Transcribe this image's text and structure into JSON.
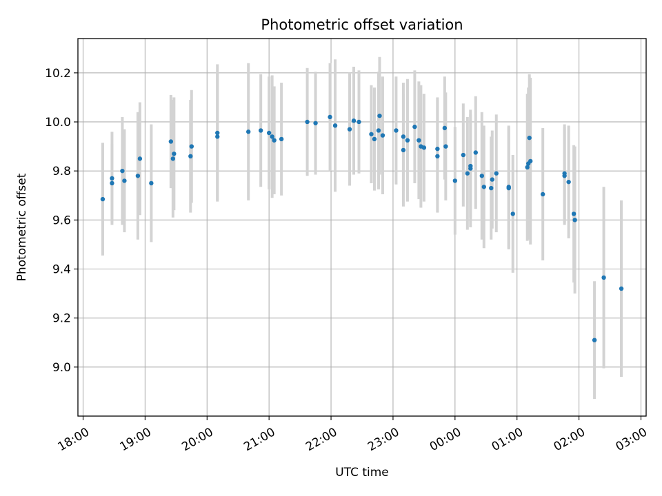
{
  "chart_data": {
    "type": "scatter",
    "title": "Photometric offset variation",
    "xlabel": "UTC time",
    "ylabel": "Photometric offset",
    "x_unit": "time (UTC), hours past 18:00",
    "xlim": [
      "17:55",
      "03:05"
    ],
    "ylim": [
      8.8,
      10.34
    ],
    "xticks": [
      "18:00",
      "19:00",
      "20:00",
      "21:00",
      "22:00",
      "23:00",
      "00:00",
      "01:00",
      "02:00",
      "03:00"
    ],
    "yticks": [
      "9.0",
      "9.2",
      "9.4",
      "9.6",
      "9.8",
      "10.0",
      "10.2"
    ],
    "grid": true,
    "colors": {
      "points": "#1f77b4",
      "errorbars": "#d3d3d3",
      "grid": "#b0b0b0"
    },
    "points": [
      {
        "x": "18:19",
        "y": 9.685,
        "err": 0.23
      },
      {
        "x": "18:28",
        "y": 9.75,
        "err": 0.16
      },
      {
        "x": "18:28",
        "y": 9.77,
        "err": 0.19
      },
      {
        "x": "18:38",
        "y": 9.8,
        "err": 0.22
      },
      {
        "x": "18:40",
        "y": 9.76,
        "err": 0.21
      },
      {
        "x": "18:53",
        "y": 9.78,
        "err": 0.26
      },
      {
        "x": "18:55",
        "y": 9.85,
        "err": 0.23
      },
      {
        "x": "19:06",
        "y": 9.75,
        "err": 0.24
      },
      {
        "x": "19:25",
        "y": 9.92,
        "err": 0.19
      },
      {
        "x": "19:27",
        "y": 9.85,
        "err": 0.24
      },
      {
        "x": "19:28",
        "y": 9.87,
        "err": 0.23
      },
      {
        "x": "19:44",
        "y": 9.86,
        "err": 0.23
      },
      {
        "x": "19:45",
        "y": 9.9,
        "err": 0.23
      },
      {
        "x": "20:10",
        "y": 9.94,
        "err": 0.26
      },
      {
        "x": "20:10",
        "y": 9.955,
        "err": 0.28
      },
      {
        "x": "20:40",
        "y": 9.96,
        "err": 0.28
      },
      {
        "x": "20:52",
        "y": 9.965,
        "err": 0.23
      },
      {
        "x": "21:00",
        "y": 9.955,
        "err": 0.23
      },
      {
        "x": "21:03",
        "y": 9.94,
        "err": 0.25
      },
      {
        "x": "21:05",
        "y": 9.925,
        "err": 0.22
      },
      {
        "x": "21:12",
        "y": 9.93,
        "err": 0.23
      },
      {
        "x": "21:37",
        "y": 10.0,
        "err": 0.22
      },
      {
        "x": "21:45",
        "y": 9.995,
        "err": 0.21
      },
      {
        "x": "21:59",
        "y": 10.02,
        "err": 0.22
      },
      {
        "x": "22:04",
        "y": 9.985,
        "err": 0.27
      },
      {
        "x": "22:18",
        "y": 9.97,
        "err": 0.23
      },
      {
        "x": "22:22",
        "y": 10.005,
        "err": 0.22
      },
      {
        "x": "22:27",
        "y": 10.0,
        "err": 0.21
      },
      {
        "x": "22:39",
        "y": 9.95,
        "err": 0.2
      },
      {
        "x": "22:42",
        "y": 9.93,
        "err": 0.21
      },
      {
        "x": "22:46",
        "y": 9.965,
        "err": 0.24
      },
      {
        "x": "22:47",
        "y": 10.025,
        "err": 0.24
      },
      {
        "x": "22:50",
        "y": 9.945,
        "err": 0.24
      },
      {
        "x": "23:03",
        "y": 9.965,
        "err": 0.22
      },
      {
        "x": "23:10",
        "y": 9.94,
        "err": 0.22
      },
      {
        "x": "23:10",
        "y": 9.885,
        "err": 0.23
      },
      {
        "x": "23:14",
        "y": 9.925,
        "err": 0.25
      },
      {
        "x": "23:21",
        "y": 9.98,
        "err": 0.23
      },
      {
        "x": "23:25",
        "y": 9.925,
        "err": 0.24
      },
      {
        "x": "23:27",
        "y": 9.9,
        "err": 0.25
      },
      {
        "x": "23:30",
        "y": 9.895,
        "err": 0.22
      },
      {
        "x": "23:43",
        "y": 9.89,
        "err": 0.21
      },
      {
        "x": "23:43",
        "y": 9.86,
        "err": 0.23
      },
      {
        "x": "23:50",
        "y": 9.975,
        "err": 0.21
      },
      {
        "x": "23:51",
        "y": 9.9,
        "err": 0.22
      },
      {
        "x": "00:00",
        "y": 9.76,
        "err": 0.22
      },
      {
        "x": "00:08",
        "y": 9.865,
        "err": 0.21
      },
      {
        "x": "00:12",
        "y": 9.79,
        "err": 0.23
      },
      {
        "x": "00:15",
        "y": 9.82,
        "err": 0.21
      },
      {
        "x": "00:15",
        "y": 9.81,
        "err": 0.24
      },
      {
        "x": "00:20",
        "y": 9.875,
        "err": 0.23
      },
      {
        "x": "00:26",
        "y": 9.78,
        "err": 0.26
      },
      {
        "x": "00:28",
        "y": 9.735,
        "err": 0.25
      },
      {
        "x": "00:36",
        "y": 9.765,
        "err": 0.2
      },
      {
        "x": "00:35",
        "y": 9.73,
        "err": 0.21
      },
      {
        "x": "00:40",
        "y": 9.79,
        "err": 0.24
      },
      {
        "x": "00:52",
        "y": 9.735,
        "err": 0.25
      },
      {
        "x": "00:52",
        "y": 9.73,
        "err": 0.25
      },
      {
        "x": "00:56",
        "y": 9.625,
        "err": 0.24
      },
      {
        "x": "01:10",
        "y": 9.815,
        "err": 0.3
      },
      {
        "x": "01:11",
        "y": 9.83,
        "err": 0.31
      },
      {
        "x": "01:12",
        "y": 9.935,
        "err": 0.26
      },
      {
        "x": "01:13",
        "y": 9.84,
        "err": 0.34
      },
      {
        "x": "01:25",
        "y": 9.705,
        "err": 0.27
      },
      {
        "x": "01:46",
        "y": 9.78,
        "err": 0.2
      },
      {
        "x": "01:46",
        "y": 9.79,
        "err": 0.2
      },
      {
        "x": "01:50",
        "y": 9.755,
        "err": 0.23
      },
      {
        "x": "01:55",
        "y": 9.625,
        "err": 0.28
      },
      {
        "x": "01:56",
        "y": 9.6,
        "err": 0.3
      },
      {
        "x": "02:15",
        "y": 9.11,
        "err": 0.24
      },
      {
        "x": "02:24",
        "y": 9.365,
        "err": 0.37
      },
      {
        "x": "02:41",
        "y": 9.32,
        "err": 0.36
      }
    ]
  }
}
